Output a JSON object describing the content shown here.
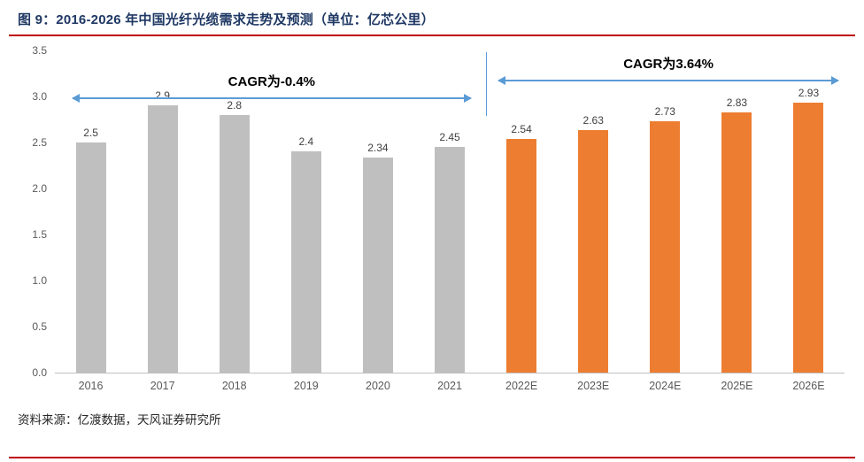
{
  "header": {
    "title": "图 9：2016-2026 年中国光纤光缆需求走势及预测（单位：亿芯公里）"
  },
  "footer": {
    "source": "资料来源：亿渡数据，天风证券研究所"
  },
  "colors": {
    "title": "#1F3864",
    "rule": "#C00000",
    "bar-historical": "#BFBFBF",
    "bar-forecast": "#ED7D31",
    "arrow": "#5B9BD5",
    "axis": "#BFBFBF",
    "tick-text": "#595959",
    "value-text": "#404040"
  },
  "chart_data": {
    "type": "bar",
    "title": "图 9：2016-2026 年中国光纤光缆需求走势及预测（单位：亿芯公里）",
    "categories": [
      "2016",
      "2017",
      "2018",
      "2019",
      "2020",
      "2021",
      "2022E",
      "2023E",
      "2024E",
      "2025E",
      "2026E"
    ],
    "values": [
      2.5,
      2.9,
      2.8,
      2.4,
      2.34,
      2.45,
      2.54,
      2.63,
      2.73,
      2.83,
      2.93
    ],
    "value_labels": [
      "2.5",
      "2.9",
      "2.8",
      "2.4",
      "2.34",
      "2.45",
      "2.54",
      "2.63",
      "2.73",
      "2.83",
      "2.93"
    ],
    "forecast_start_index": 6,
    "xlabel": "",
    "ylabel": "",
    "ylim": [
      0,
      3.5
    ],
    "yticks": [
      0,
      0.5,
      1,
      1.5,
      2,
      2.5,
      3,
      3.5
    ],
    "ytick_labels": [
      "0.0",
      "0.5",
      "1.0",
      "1.5",
      "2.0",
      "2.5",
      "3.0",
      "3.5"
    ],
    "grid": false,
    "legend": "none",
    "series_colors": {
      "historical": "#BFBFBF",
      "forecast": "#ED7D31"
    },
    "annotations": [
      {
        "label": "CAGR为-0.4%",
        "type": "double-arrow",
        "segment": "historical"
      },
      {
        "label": "CAGR为3.64%",
        "type": "double-arrow",
        "segment": "forecast"
      }
    ]
  }
}
